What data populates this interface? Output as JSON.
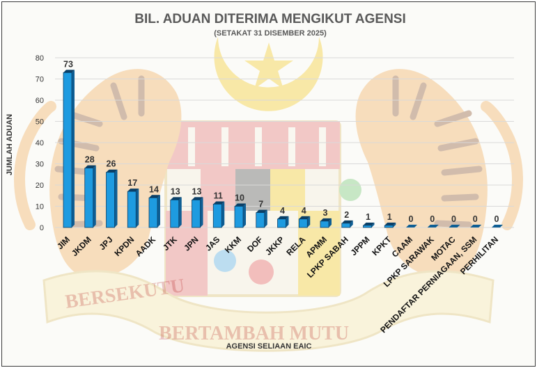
{
  "colors": {
    "bar_front": "#1E9BE0",
    "bar_side": "#0E5E94",
    "bar_top": "#0A3F66",
    "gridline": "#d9d9d9",
    "title_text": "#595959",
    "label_text": "#333333"
  },
  "chart_data": {
    "type": "bar",
    "style": "3d-column",
    "title": "BIL. ADUAN DITERIMA MENGIKUT AGENSI",
    "subtitle": "(SETAKAT 31 DISEMBER 2025)",
    "xlabel": "AGENSI SELIAAN EAIC",
    "ylabel": "JUMLAH ADUAN",
    "ylim": [
      0,
      80
    ],
    "yticks": [
      0,
      10,
      20,
      30,
      40,
      50,
      60,
      70,
      80
    ],
    "grid": true,
    "legend": "none",
    "categories": [
      "JIM",
      "JKDM",
      "JPJ",
      "KPDN",
      "AADK",
      "JTK",
      "JPN",
      "JAS",
      "KKM",
      "DOF",
      "JKKP",
      "RELA",
      "APMM",
      "LPKP SABAH",
      "JPPM",
      "KPKT",
      "CAAM",
      "LPKP SARAWAK",
      "MOTAC",
      "PENDAFTAR PERNIAGAAN, SSM",
      "PERHILITAN"
    ],
    "values": [
      73,
      28,
      26,
      17,
      14,
      13,
      13,
      11,
      10,
      7,
      4,
      4,
      3,
      2,
      1,
      1,
      0,
      0,
      0,
      0,
      0
    ],
    "data_labels": [
      "73",
      "28",
      "26",
      "17",
      "14",
      "13",
      "13",
      "11",
      "10",
      "7",
      "4",
      "4",
      "3",
      "2",
      "1",
      "1",
      "0",
      "0",
      "0",
      "0",
      "0"
    ]
  },
  "watermark": {
    "motto_left": "BERSEKUTU",
    "motto_center": "BERTAMBAH MUTU"
  }
}
